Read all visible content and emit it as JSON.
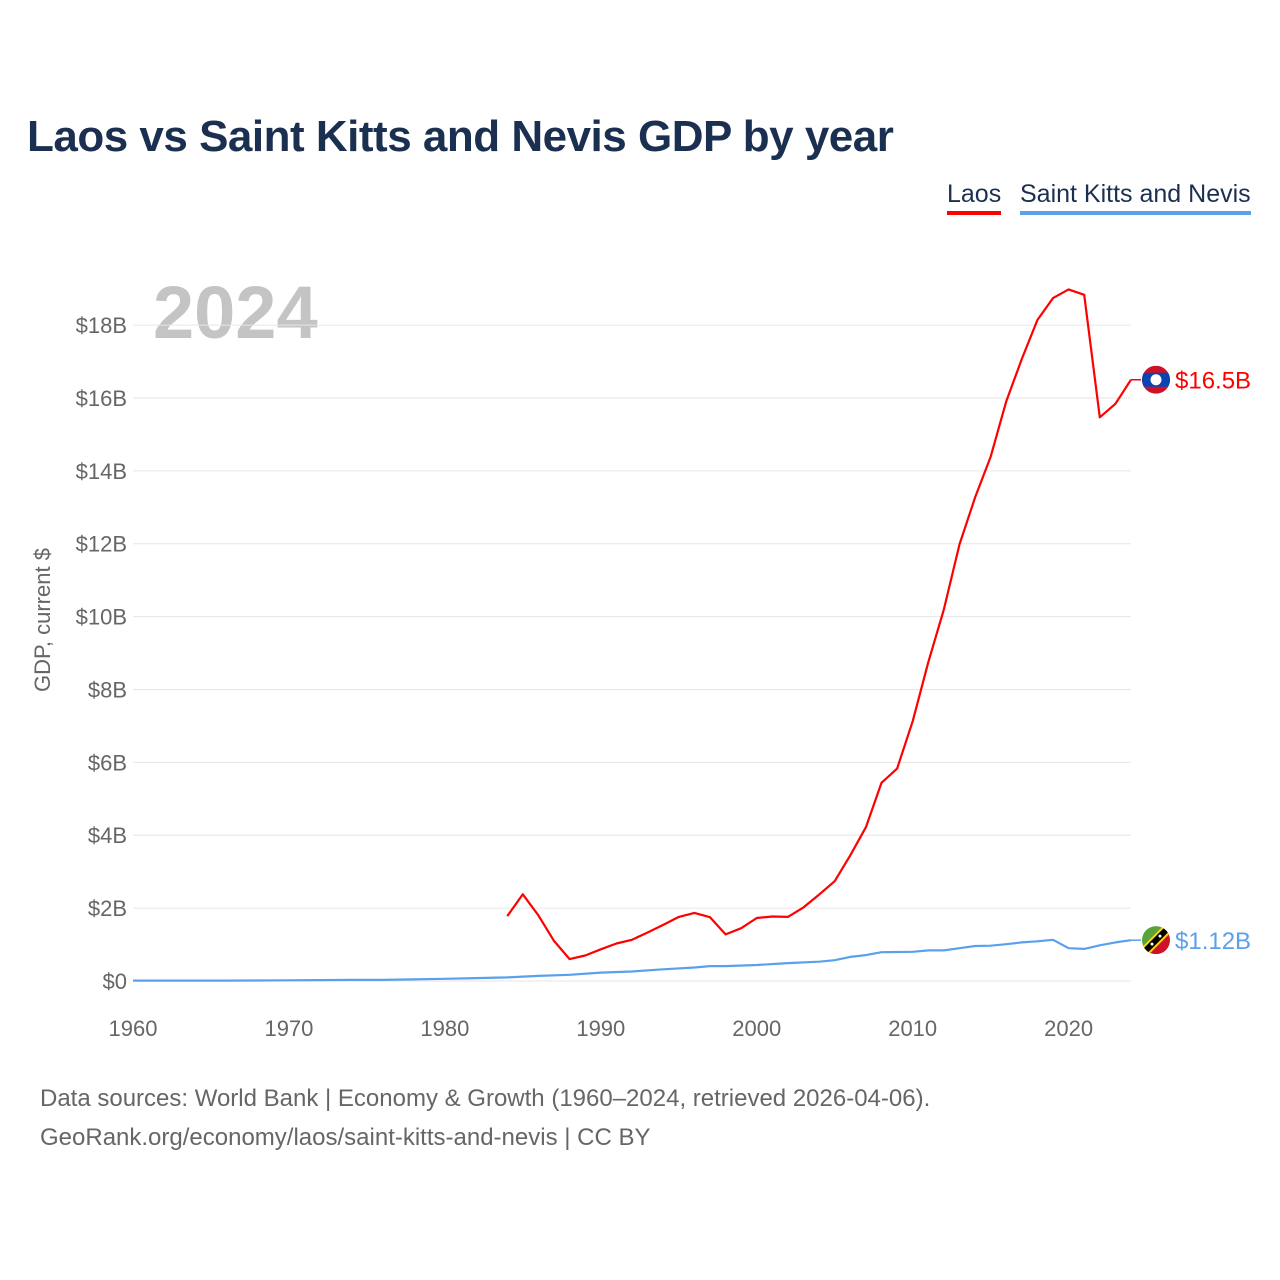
{
  "chart_data": {
    "type": "line",
    "title": "Laos vs Saint Kitts and Nevis GDP by year",
    "year_label": "2024",
    "xlabel": "",
    "ylabel": "GDP, current $",
    "xlim": [
      1960,
      2024
    ],
    "ylim": [
      0,
      19.5
    ],
    "x_ticks": [
      1960,
      1970,
      1980,
      1990,
      2000,
      2010,
      2020
    ],
    "y_ticks": [
      0,
      2,
      4,
      6,
      8,
      10,
      12,
      14,
      16,
      18
    ],
    "y_tick_labels": [
      "$0",
      "$2B",
      "$4B",
      "$6B",
      "$8B",
      "$10B",
      "$12B",
      "$14B",
      "$16B",
      "$18B"
    ],
    "grid": true,
    "legend_position": "top-right",
    "series": [
      {
        "name": "Laos",
        "color": "#ff0000",
        "end_label": "$16.5B",
        "flag": "laos-flag",
        "x": [
          1984,
          1985,
          1986,
          1987,
          1988,
          1989,
          1990,
          1991,
          1992,
          1993,
          1994,
          1995,
          1996,
          1997,
          1998,
          1999,
          2000,
          2001,
          2002,
          2003,
          2004,
          2005,
          2006,
          2007,
          2008,
          2009,
          2010,
          2011,
          2012,
          2013,
          2014,
          2015,
          2016,
          2017,
          2018,
          2019,
          2020,
          2021,
          2022,
          2023,
          2024
        ],
        "values": [
          1.78,
          2.38,
          1.8,
          1.1,
          0.6,
          0.7,
          0.87,
          1.03,
          1.13,
          1.33,
          1.54,
          1.76,
          1.87,
          1.75,
          1.28,
          1.45,
          1.73,
          1.77,
          1.76,
          2.02,
          2.37,
          2.74,
          3.45,
          4.22,
          5.44,
          5.83,
          7.13,
          8.75,
          10.2,
          11.98,
          13.27,
          14.39,
          15.91,
          17.07,
          18.14,
          18.74,
          18.98,
          18.83,
          15.47,
          15.84,
          16.5
        ]
      },
      {
        "name": "Saint Kitts and Nevis",
        "color": "#5aa0ec",
        "end_label": "$1.12B",
        "flag": "saint-kitts-and-nevis-flag",
        "x": [
          1960,
          1962,
          1964,
          1966,
          1968,
          1970,
          1972,
          1974,
          1976,
          1978,
          1980,
          1982,
          1984,
          1986,
          1988,
          1990,
          1992,
          1994,
          1996,
          1997,
          1998,
          2000,
          2002,
          2004,
          2005,
          2006,
          2007,
          2008,
          2010,
          2011,
          2012,
          2013,
          2014,
          2015,
          2016,
          2017,
          2018,
          2019,
          2020,
          2021,
          2022,
          2023,
          2024
        ],
        "values": [
          0.01,
          0.01,
          0.01,
          0.01,
          0.015,
          0.02,
          0.025,
          0.03,
          0.03,
          0.045,
          0.06,
          0.08,
          0.1,
          0.14,
          0.17,
          0.23,
          0.26,
          0.32,
          0.37,
          0.41,
          0.41,
          0.44,
          0.49,
          0.53,
          0.57,
          0.66,
          0.71,
          0.79,
          0.8,
          0.84,
          0.84,
          0.9,
          0.96,
          0.97,
          1.01,
          1.06,
          1.09,
          1.13,
          0.9,
          0.88,
          0.98,
          1.06,
          1.12
        ]
      }
    ]
  },
  "footer": {
    "line1": "Data sources: World Bank | Economy & Growth (1960–2024, retrieved 2026-04-06).",
    "line2": "GeoRank.org/economy/laos/saint-kitts-and-nevis | CC BY"
  }
}
